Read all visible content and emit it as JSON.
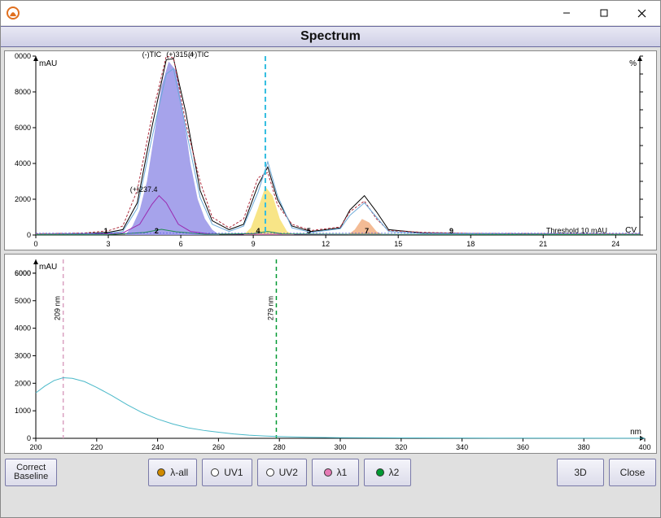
{
  "window": {
    "title": ""
  },
  "header": {
    "title": "Spectrum"
  },
  "toolbar": {
    "correct_baseline": "Correct\nBaseline",
    "lambda_all": "λ-all",
    "uv1": "UV1",
    "uv2": "UV2",
    "lambda1": "λ1",
    "lambda2": "λ2",
    "threeD": "3D",
    "close": "Close",
    "dot_colors": {
      "lambda_all": "#d08a00",
      "uv1": "#ffffff",
      "uv2": "#ffffff",
      "lambda1": "#e57ab5",
      "lambda2": "#009933"
    }
  },
  "chromatogram": {
    "type": "line",
    "x_unit": "CV",
    "y_unit_left": "mAU",
    "y_unit_right": "%",
    "xlim": [
      0,
      25
    ],
    "ylim": [
      0,
      10000
    ],
    "xtick_step": 3,
    "ytick_step": 2000,
    "ymax_label": "0000",
    "background_color": "#ffffff",
    "grid_color": "#dddddd",
    "threshold_label": "Threshold 10 mAU",
    "threshold_color": "#3333ff",
    "cursor_x": 9.5,
    "cursor_color": "#33bde0",
    "series_labels": [
      {
        "text": "(-)TIC",
        "x": 4.4,
        "y": 9950,
        "color": "#000000"
      },
      {
        "text": "(+)315.4",
        "x": 5.4,
        "y": 9950,
        "color": "#aa3333"
      },
      {
        "text": "(+)TIC",
        "x": 6.3,
        "y": 9950,
        "color": "#000000"
      },
      {
        "text": "(+)237.4",
        "x": 3.9,
        "y": 2400,
        "color": "#9a2ab0"
      }
    ],
    "peak_numbers": [
      {
        "n": "1",
        "x": 2.9
      },
      {
        "n": "2",
        "x": 5.0
      },
      {
        "n": "4",
        "x": 9.2
      },
      {
        "n": "5",
        "x": 11.3
      },
      {
        "n": "7",
        "x": 13.7
      },
      {
        "n": "9",
        "x": 17.2
      }
    ],
    "filled_peaks": [
      {
        "color": "#9793e8",
        "opacity": 0.85,
        "points": [
          [
            3.7,
            0
          ],
          [
            4.0,
            500
          ],
          [
            4.3,
            1400
          ],
          [
            4.6,
            3000
          ],
          [
            4.9,
            5600
          ],
          [
            5.2,
            8300
          ],
          [
            5.5,
            9700
          ],
          [
            5.8,
            9200
          ],
          [
            6.1,
            6800
          ],
          [
            6.4,
            4000
          ],
          [
            6.7,
            2000
          ],
          [
            7.0,
            900
          ],
          [
            7.3,
            300
          ],
          [
            7.6,
            0
          ]
        ]
      },
      {
        "color": "#f7e27a",
        "opacity": 0.9,
        "points": [
          [
            8.6,
            0
          ],
          [
            8.9,
            400
          ],
          [
            9.2,
            1500
          ],
          [
            9.5,
            2700
          ],
          [
            9.8,
            2200
          ],
          [
            10.1,
            900
          ],
          [
            10.4,
            200
          ],
          [
            10.7,
            0
          ]
        ]
      },
      {
        "color": "#f2b48a",
        "opacity": 0.9,
        "points": [
          [
            12.9,
            0
          ],
          [
            13.2,
            300
          ],
          [
            13.5,
            900
          ],
          [
            13.8,
            700
          ],
          [
            14.1,
            200
          ],
          [
            14.4,
            0
          ]
        ]
      }
    ],
    "traces": [
      {
        "color": "#000000",
        "width": 1,
        "points": [
          [
            0,
            50
          ],
          [
            2,
            80
          ],
          [
            3,
            150
          ],
          [
            3.6,
            300
          ],
          [
            4.2,
            1800
          ],
          [
            4.8,
            6000
          ],
          [
            5.4,
            9800
          ],
          [
            5.7,
            9850
          ],
          [
            6.2,
            6900
          ],
          [
            6.8,
            2500
          ],
          [
            7.3,
            800
          ],
          [
            8.0,
            300
          ],
          [
            8.6,
            600
          ],
          [
            9.2,
            2800
          ],
          [
            9.6,
            3800
          ],
          [
            10.0,
            2000
          ],
          [
            10.6,
            500
          ],
          [
            11.4,
            200
          ],
          [
            12.6,
            400
          ],
          [
            13.0,
            1400
          ],
          [
            13.6,
            2200
          ],
          [
            14.1,
            1300
          ],
          [
            14.6,
            300
          ],
          [
            16,
            120
          ],
          [
            18,
            80
          ],
          [
            21,
            60
          ],
          [
            25,
            50
          ]
        ]
      },
      {
        "color": "#b03040",
        "width": 1,
        "dash": "3 2",
        "points": [
          [
            0,
            70
          ],
          [
            2,
            110
          ],
          [
            3,
            240
          ],
          [
            3.6,
            500
          ],
          [
            4.2,
            2500
          ],
          [
            4.8,
            6600
          ],
          [
            5.4,
            10000
          ],
          [
            5.7,
            9900
          ],
          [
            6.2,
            6300
          ],
          [
            6.8,
            3000
          ],
          [
            7.3,
            1000
          ],
          [
            8.0,
            400
          ],
          [
            8.6,
            900
          ],
          [
            9.2,
            3200
          ],
          [
            9.6,
            3500
          ],
          [
            10.0,
            1700
          ],
          [
            10.6,
            600
          ],
          [
            11.4,
            250
          ],
          [
            12.6,
            450
          ],
          [
            13.0,
            1300
          ],
          [
            13.6,
            1900
          ],
          [
            14.1,
            900
          ],
          [
            14.6,
            250
          ],
          [
            16,
            150
          ],
          [
            18,
            90
          ],
          [
            21,
            80
          ],
          [
            25,
            60
          ]
        ]
      },
      {
        "color": "#6aa9d9",
        "width": 1,
        "points": [
          [
            0,
            40
          ],
          [
            2,
            60
          ],
          [
            3,
            100
          ],
          [
            3.6,
            200
          ],
          [
            4.2,
            1500
          ],
          [
            4.8,
            5400
          ],
          [
            5.4,
            9000
          ],
          [
            5.7,
            9300
          ],
          [
            6.2,
            6000
          ],
          [
            6.8,
            2100
          ],
          [
            7.3,
            600
          ],
          [
            8.0,
            200
          ],
          [
            8.6,
            500
          ],
          [
            9.2,
            2400
          ],
          [
            9.6,
            4100
          ],
          [
            10.0,
            2200
          ],
          [
            10.6,
            400
          ],
          [
            11.4,
            150
          ],
          [
            12.6,
            350
          ],
          [
            13.0,
            1100
          ],
          [
            13.6,
            1800
          ],
          [
            14.1,
            1000
          ],
          [
            14.6,
            200
          ],
          [
            16,
            90
          ],
          [
            18,
            60
          ],
          [
            21,
            50
          ],
          [
            25,
            40
          ]
        ]
      },
      {
        "color": "#9a2ab0",
        "width": 1,
        "points": [
          [
            0,
            20
          ],
          [
            2,
            30
          ],
          [
            3,
            60
          ],
          [
            3.6,
            120
          ],
          [
            4.3,
            600
          ],
          [
            4.8,
            1700
          ],
          [
            5.1,
            2200
          ],
          [
            5.4,
            1800
          ],
          [
            5.9,
            600
          ],
          [
            6.4,
            200
          ],
          [
            7.2,
            60
          ],
          [
            9,
            40
          ],
          [
            12,
            30
          ],
          [
            20,
            20
          ],
          [
            25,
            20
          ]
        ]
      },
      {
        "color": "#1f8a50",
        "width": 1,
        "points": [
          [
            0,
            15
          ],
          [
            3,
            20
          ],
          [
            4.5,
            140
          ],
          [
            5.2,
            320
          ],
          [
            5.8,
            180
          ],
          [
            7,
            40
          ],
          [
            9,
            80
          ],
          [
            9.6,
            200
          ],
          [
            10.2,
            60
          ],
          [
            13,
            40
          ],
          [
            25,
            15
          ]
        ]
      }
    ]
  },
  "spectrum": {
    "type": "line",
    "x_unit": "nm",
    "y_unit": "mAU",
    "xlim": [
      200,
      400
    ],
    "ylim": [
      0,
      6500
    ],
    "xtick_step": 20,
    "ytick_step": 1000,
    "background_color": "#ffffff",
    "markers": [
      {
        "label": "209 nm",
        "x": 209,
        "color": "#d9a0c0"
      },
      {
        "label": "279 nm",
        "x": 279,
        "color": "#009933"
      }
    ],
    "trace": {
      "color": "#4bb9c9",
      "width": 1,
      "points": [
        [
          200,
          1650
        ],
        [
          203,
          1900
        ],
        [
          206,
          2100
        ],
        [
          209,
          2200
        ],
        [
          212,
          2180
        ],
        [
          216,
          2060
        ],
        [
          220,
          1850
        ],
        [
          225,
          1550
        ],
        [
          230,
          1220
        ],
        [
          235,
          930
        ],
        [
          240,
          700
        ],
        [
          245,
          520
        ],
        [
          250,
          380
        ],
        [
          255,
          290
        ],
        [
          260,
          220
        ],
        [
          265,
          160
        ],
        [
          270,
          115
        ],
        [
          275,
          85
        ],
        [
          280,
          62
        ],
        [
          290,
          38
        ],
        [
          300,
          24
        ],
        [
          320,
          14
        ],
        [
          350,
          8
        ],
        [
          400,
          4
        ]
      ]
    }
  }
}
